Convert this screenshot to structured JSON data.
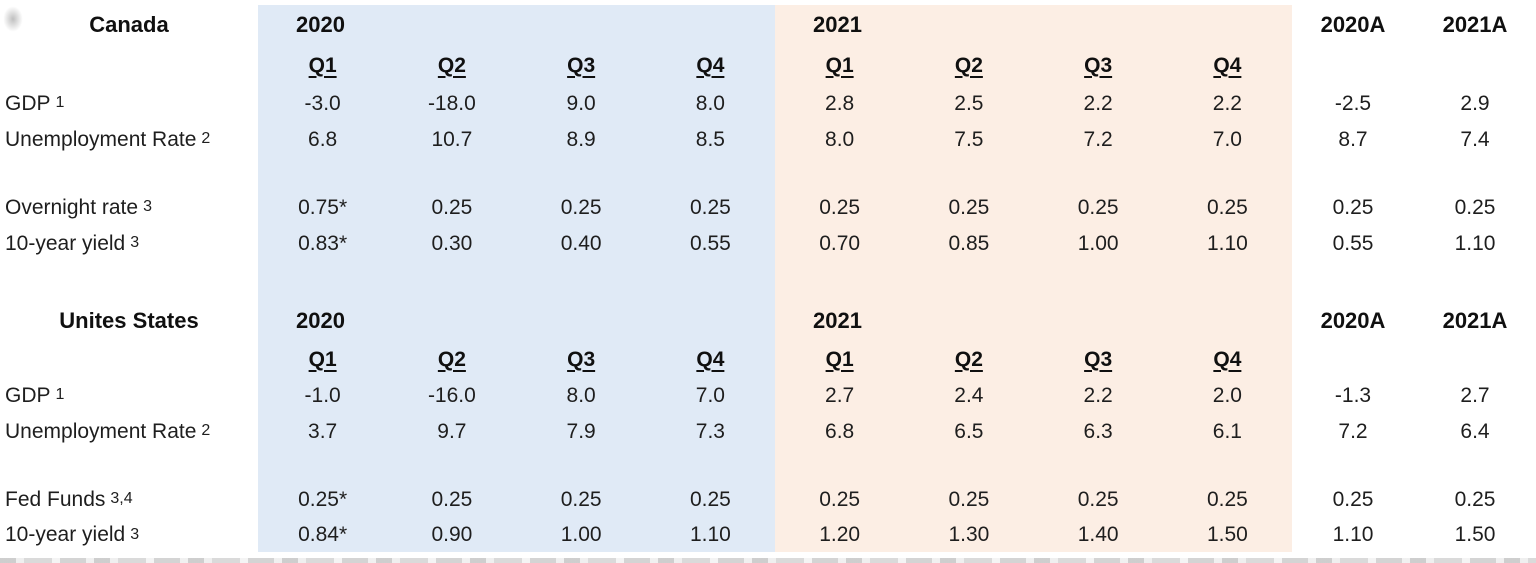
{
  "colors": {
    "band_2020": "#e0eaf6",
    "band_2021": "#fceee4",
    "text": "#1e1e1e"
  },
  "table": {
    "annual_headers": [
      "2020A",
      "2021A"
    ],
    "sections": [
      {
        "country": "Canada",
        "year_labels": [
          "2020",
          "2021"
        ],
        "quarter_headers": [
          "Q1",
          "Q2",
          "Q3",
          "Q4",
          "Q1",
          "Q2",
          "Q3",
          "Q4"
        ],
        "rows": [
          {
            "label": "GDP",
            "footnote": "1",
            "values": [
              "-3.0",
              "-18.0",
              "9.0",
              "8.0",
              "2.8",
              "2.5",
              "2.2",
              "2.2",
              "-2.5",
              "2.9"
            ]
          },
          {
            "label": "Unemployment Rate",
            "footnote": "2",
            "values": [
              "6.8",
              "10.7",
              "8.9",
              "8.5",
              "8.0",
              "7.5",
              "7.2",
              "7.0",
              "8.7",
              "7.4"
            ]
          },
          {
            "label": "Overnight rate",
            "footnote": "3",
            "values": [
              "0.75*",
              "0.25",
              "0.25",
              "0.25",
              "0.25",
              "0.25",
              "0.25",
              "0.25",
              "0.25",
              "0.25"
            ]
          },
          {
            "label": "10-year yield",
            "footnote": "3",
            "values": [
              "0.83*",
              "0.30",
              "0.40",
              "0.55",
              "0.70",
              "0.85",
              "1.00",
              "1.10",
              "0.55",
              "1.10"
            ]
          }
        ]
      },
      {
        "country": "Unites States",
        "year_labels": [
          "2020",
          "2021"
        ],
        "quarter_headers": [
          "Q1",
          "Q2",
          "Q3",
          "Q4",
          "Q1",
          "Q2",
          "Q3",
          "Q4"
        ],
        "rows": [
          {
            "label": "GDP",
            "footnote": "1",
            "values": [
              "-1.0",
              "-16.0",
              "8.0",
              "7.0",
              "2.7",
              "2.4",
              "2.2",
              "2.0",
              "-1.3",
              "2.7"
            ]
          },
          {
            "label": "Unemployment Rate",
            "footnote": "2",
            "values": [
              "3.7",
              "9.7",
              "7.9",
              "7.3",
              "6.8",
              "6.5",
              "6.3",
              "6.1",
              "7.2",
              "6.4"
            ]
          },
          {
            "label": "Fed Funds",
            "footnote": "3,4",
            "values": [
              "0.25*",
              "0.25",
              "0.25",
              "0.25",
              "0.25",
              "0.25",
              "0.25",
              "0.25",
              "0.25",
              "0.25"
            ]
          },
          {
            "label": "10-year yield",
            "footnote": "3",
            "values": [
              "0.84*",
              "0.90",
              "1.00",
              "1.10",
              "1.20",
              "1.30",
              "1.40",
              "1.50",
              "1.10",
              "1.50"
            ]
          }
        ]
      }
    ]
  }
}
